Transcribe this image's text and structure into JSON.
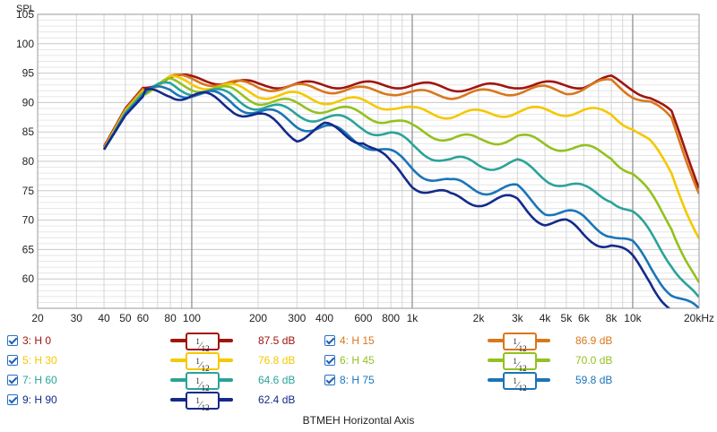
{
  "chart_data": {
    "type": "line",
    "title": "BTMEH Horizontal Axis",
    "ylabel": "SPL",
    "xlabel": "",
    "x_scale": "log",
    "xlim": [
      20,
      20000
    ],
    "ylim": [
      55,
      105
    ],
    "y_ticks": [
      60,
      65,
      70,
      75,
      80,
      85,
      90,
      95,
      100,
      105
    ],
    "y_tick_labels": [
      "60",
      "65",
      "70",
      "75",
      "80",
      "85",
      "90",
      "95",
      "100",
      "105"
    ],
    "x_ticks": [
      20,
      30,
      40,
      50,
      60,
      80,
      100,
      200,
      300,
      400,
      600,
      800,
      1000,
      2000,
      3000,
      4000,
      5000,
      6000,
      8000,
      10000,
      20000
    ],
    "x_tick_labels": [
      "20",
      "30",
      "40",
      "50",
      "60",
      "80",
      "100",
      "200",
      "300",
      "400",
      "600",
      "800",
      "1k",
      "2k",
      "3k",
      "4k",
      "5k",
      "6k",
      "8k",
      "10k",
      "20kHz"
    ],
    "grid": true,
    "x": [
      40,
      50,
      60,
      80,
      100,
      150,
      200,
      300,
      400,
      600,
      800,
      1000,
      1500,
      2000,
      3000,
      4000,
      5000,
      6000,
      8000,
      10000,
      12000,
      15000,
      20000
    ],
    "series": [
      {
        "name": "3: H 0",
        "color": "#a0150f",
        "values": [
          82.5,
          89,
          92.5,
          94.5,
          94,
          93.5,
          93,
          93,
          93,
          93,
          93,
          93,
          92.5,
          92.5,
          93,
          93,
          93,
          93,
          94,
          92.5,
          91,
          88,
          76
        ]
      },
      {
        "name": "4: H 15",
        "color": "#d9771c",
        "values": [
          82.3,
          88.8,
          92.3,
          94.2,
          93.8,
          93.2,
          92.7,
          92.5,
          92.3,
          92,
          92,
          91.5,
          91.3,
          91.5,
          92,
          92.2,
          92,
          92.5,
          93.5,
          91.5,
          90,
          87,
          75
        ]
      },
      {
        "name": "5: H 30",
        "color": "#f5c800",
        "values": [
          82.2,
          88.6,
          92,
          93.8,
          93.3,
          92.5,
          91.5,
          91,
          90.5,
          90,
          89.5,
          88.5,
          88,
          88,
          88.5,
          88.5,
          88.5,
          88.5,
          88,
          86,
          83,
          78,
          67
        ]
      },
      {
        "name": "6: H 45",
        "color": "#94c11f",
        "values": [
          82,
          88.4,
          91.8,
          93.3,
          92.8,
          91.8,
          90.5,
          89.5,
          89,
          88,
          87,
          85.5,
          84,
          83.5,
          84,
          83,
          82.5,
          82,
          81,
          78,
          74,
          69,
          59
        ]
      },
      {
        "name": "7: H 60",
        "color": "#2aa39a",
        "values": [
          82,
          88.2,
          91.5,
          92.8,
          92.2,
          91,
          89.5,
          88,
          87.5,
          86,
          84.5,
          82.5,
          80,
          79.5,
          79.5,
          77.5,
          76,
          75,
          74,
          71,
          67.5,
          63,
          56
        ]
      },
      {
        "name": "8: H 75",
        "color": "#1a75b8",
        "values": [
          82,
          88,
          91.2,
          92.3,
          91.7,
          90.3,
          88.5,
          86.5,
          85.5,
          83.5,
          81,
          79,
          76,
          75.5,
          75,
          72,
          71,
          70,
          68,
          65.5,
          62,
          58,
          54
        ]
      },
      {
        "name": "9: H 90",
        "color": "#142a8a",
        "values": [
          82,
          87.8,
          91,
          91.8,
          91.2,
          89.5,
          87.5,
          84.5,
          85.5,
          84,
          79,
          76.5,
          73.5,
          73.5,
          73,
          70,
          69,
          67.5,
          66,
          63,
          60,
          55,
          50
        ]
      }
    ]
  },
  "legend": [
    {
      "label": "3: H 0",
      "color": "#a0150f",
      "smoothing_num": "1",
      "smoothing_den": "12",
      "level": "87.5 dB"
    },
    {
      "label": "4: H 15",
      "color": "#d9771c",
      "smoothing_num": "1",
      "smoothing_den": "12",
      "level": "86.9 dB"
    },
    {
      "label": "5: H 30",
      "color": "#f5c800",
      "smoothing_num": "1",
      "smoothing_den": "12",
      "level": "76.8 dB"
    },
    {
      "label": "6: H 45",
      "color": "#94c11f",
      "smoothing_num": "1",
      "smoothing_den": "12",
      "level": "70.0 dB"
    },
    {
      "label": "7: H 60",
      "color": "#2aa39a",
      "smoothing_num": "1",
      "smoothing_den": "12",
      "level": "64.6 dB"
    },
    {
      "label": "8: H 75",
      "color": "#1a75b8",
      "smoothing_num": "1",
      "smoothing_den": "12",
      "level": "59.8 dB"
    },
    {
      "label": "9: H 90",
      "color": "#142a8a",
      "smoothing_num": "1",
      "smoothing_den": "12",
      "level": "62.4 dB"
    }
  ],
  "footer": "BTMEH Horizontal Axis"
}
